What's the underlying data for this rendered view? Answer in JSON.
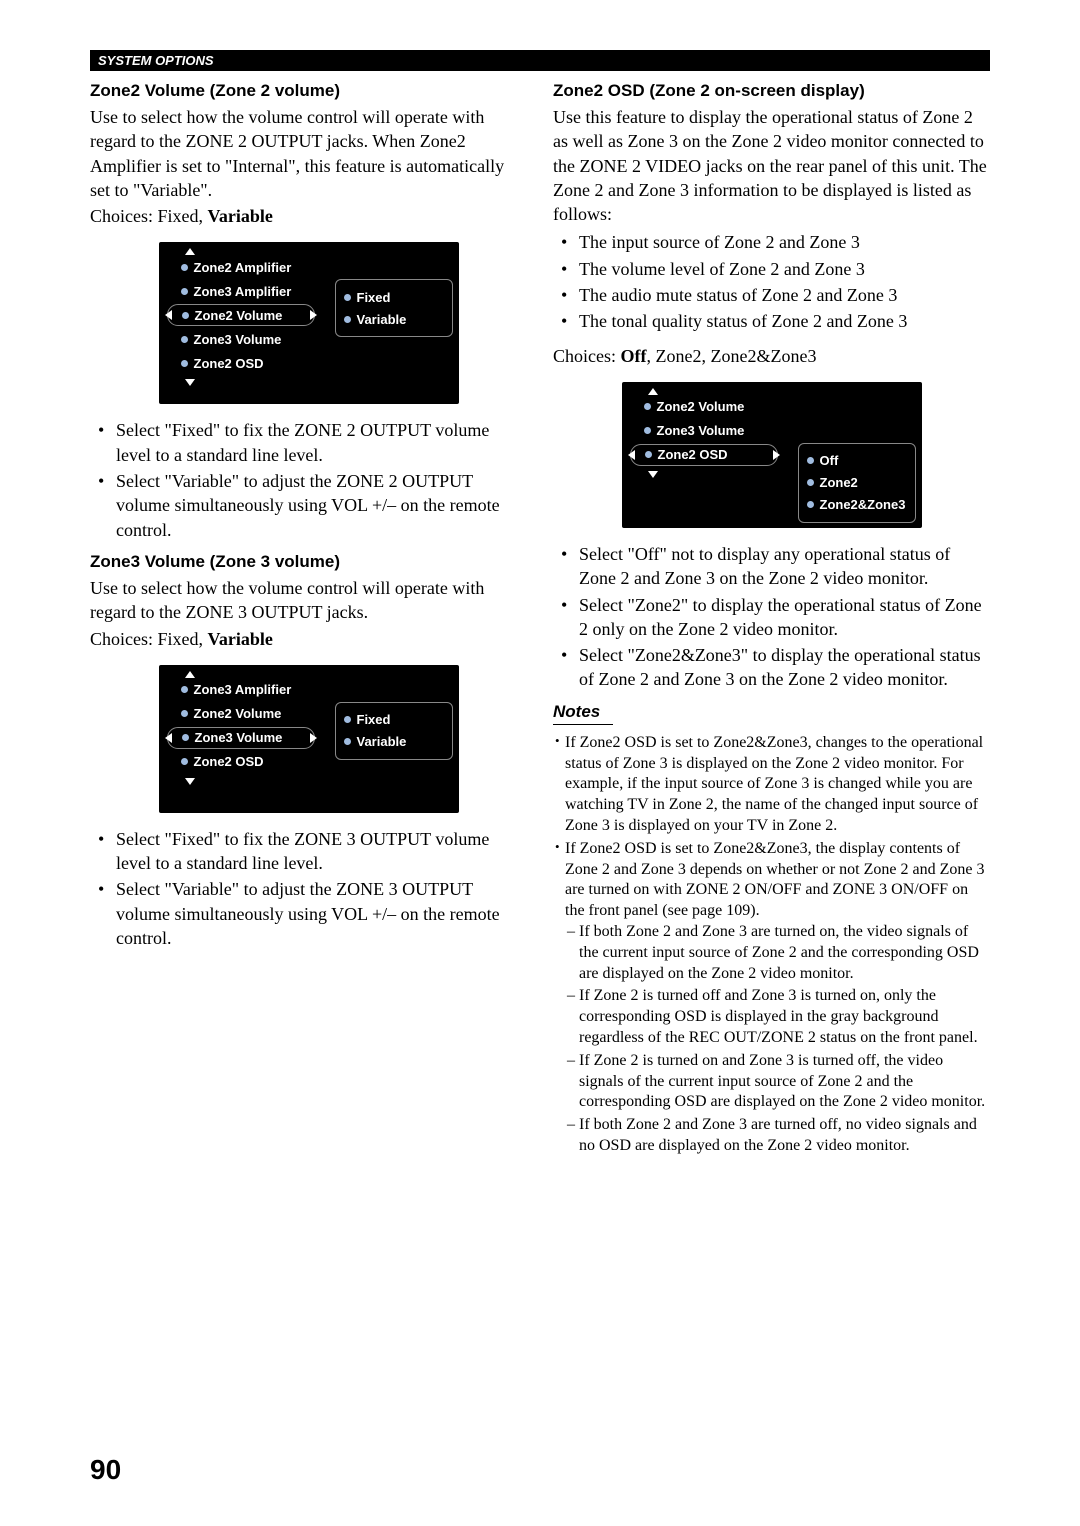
{
  "header": "SYSTEM OPTIONS",
  "page_number": "90",
  "left": {
    "z2vol": {
      "title": "Zone2 Volume (Zone 2 volume)",
      "desc": "Use to select how the volume control will operate with regard to the ZONE 2 OUTPUT jacks. When Zone2 Amplifier is set to \"Internal\", this feature is automatically set to \"Variable\".",
      "choices_prefix": "Choices: Fixed, ",
      "choices_bold": "Variable",
      "bullets": [
        "Select \"Fixed\" to fix the ZONE 2 OUTPUT volume level to a standard line level.",
        "Select \"Variable\" to adjust the ZONE 2 OUTPUT volume simultaneously using VOL +/– on the remote control."
      ]
    },
    "z3vol": {
      "title": "Zone3 Volume (Zone 3 volume)",
      "desc": "Use to select how the volume control will operate with regard to the ZONE 3 OUTPUT jacks.",
      "choices_prefix": "Choices: Fixed, ",
      "choices_bold": "Variable",
      "bullets": [
        "Select \"Fixed\" to fix the ZONE 3 OUTPUT volume level to a standard line level.",
        "Select \"Variable\" to adjust the ZONE 3 OUTPUT volume simultaneously using VOL +/– on the remote control."
      ]
    },
    "menu1": {
      "items": [
        "Zone2 Amplifier",
        "Zone3 Amplifier",
        "Zone2 Volume",
        "Zone3 Volume",
        "Zone2 OSD"
      ],
      "selected": "Zone2 Volume",
      "options": [
        "Fixed",
        "Variable"
      ],
      "options_top_row": 1
    },
    "menu2": {
      "items": [
        "Zone3 Amplifier",
        "Zone2 Volume",
        "Zone3 Volume",
        "Zone2 OSD"
      ],
      "selected": "Zone3 Volume",
      "options": [
        "Fixed",
        "Variable"
      ],
      "options_top_row": 1
    }
  },
  "right": {
    "osd": {
      "title": "Zone2 OSD (Zone 2 on-screen display)",
      "desc": "Use this feature to display the operational status of Zone 2 as well as Zone 3 on the Zone 2 video monitor connected to the ZONE 2 VIDEO jacks on the rear panel of this unit. The Zone 2 and Zone 3 information to be displayed is listed as follows:",
      "feature_list": [
        "The input source of Zone 2 and Zone 3",
        "The volume level of Zone 2 and Zone 3",
        "The audio mute status of Zone 2 and Zone 3",
        "The tonal quality status of Zone 2 and Zone 3"
      ],
      "choices_prefix": "Choices: ",
      "choices_bold": "Off",
      "choices_suffix": ", Zone2, Zone2&Zone3",
      "bullets": [
        "Select \"Off\" not to display any operational status of Zone 2 and Zone 3 on the Zone 2 video monitor.",
        "Select \"Zone2\" to display the operational status of Zone 2 only on the Zone 2 video monitor.",
        "Select \"Zone2&Zone3\" to display the operational status of Zone 2 and Zone 3 on the Zone 2 video monitor."
      ]
    },
    "menu3": {
      "items": [
        "Zone2 Volume",
        "Zone3 Volume",
        "Zone2 OSD"
      ],
      "selected": "Zone2 OSD",
      "options": [
        "Off",
        "Zone2",
        "Zone2&Zone3"
      ],
      "options_top_row": 2
    },
    "notes_label": "Notes",
    "notes": [
      "If Zone2 OSD is set to Zone2&Zone3, changes to the operational status of Zone 3 is displayed on the Zone 2 video monitor. For example, if the input source of Zone 3 is changed while you are watching TV in Zone 2, the name of the changed input source of Zone 3 is displayed on your TV in Zone 2.",
      "If Zone2 OSD is set to Zone2&Zone3, the display contents of Zone 2 and Zone 3 depends on whether or not Zone 2 and Zone 3 are turned on with ZONE 2 ON/OFF and ZONE 3 ON/OFF on the front panel (see page 109)."
    ],
    "notes_sub": [
      "If both Zone 2 and Zone 3 are turned on, the video signals of the current input source of Zone 2 and the corresponding OSD are displayed on the Zone 2 video monitor.",
      "If Zone 2 is turned off and Zone 3 is turned on, only the corresponding OSD is displayed in the gray background regardless of the REC OUT/ZONE 2 status on the front panel.",
      "If Zone 2 is turned on and Zone 3 is turned off, the video signals of the current input source of Zone 2 and the corresponding OSD are displayed on the Zone 2 video monitor.",
      "If both Zone 2 and Zone 3 are turned off, no video signals and no OSD are displayed on the Zone 2 video monitor."
    ]
  }
}
